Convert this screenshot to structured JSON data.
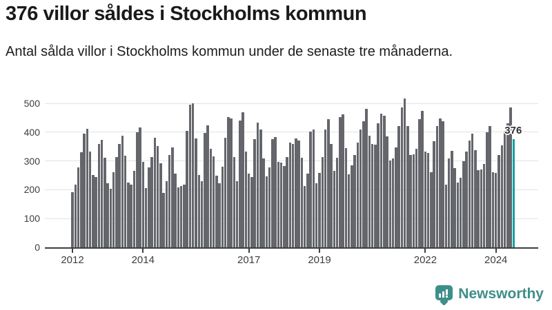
{
  "header": {
    "title": "376 villor såldes i Stockholms kommun",
    "subtitle": "Antal sålda villor i Stockholms kommun under de senaste tre månaderna."
  },
  "chart_data": {
    "type": "bar",
    "title": "376 villor såldes i Stockholms kommun",
    "ylabel": "Antal sålda villor",
    "xlabel": "",
    "grid": true,
    "ylim": [
      0,
      525
    ],
    "yticks": [
      0,
      100,
      200,
      300,
      400,
      500
    ],
    "x_start_month": "2012-01",
    "x_end_month": "2024-07",
    "xticks": [
      {
        "label": "2012",
        "index": 0
      },
      {
        "label": "2014",
        "index": 24
      },
      {
        "label": "2017",
        "index": 60
      },
      {
        "label": "2019",
        "index": 84
      },
      {
        "label": "2022",
        "index": 120
      },
      {
        "label": "2024",
        "index": 144
      }
    ],
    "values": [
      191,
      217,
      278,
      331,
      395,
      411,
      333,
      251,
      243,
      358,
      374,
      310,
      222,
      203,
      261,
      313,
      360,
      388,
      317,
      225,
      217,
      265,
      400,
      416,
      297,
      205,
      277,
      313,
      380,
      352,
      293,
      189,
      229,
      320,
      348,
      257,
      209,
      213,
      217,
      404,
      496,
      501,
      378,
      250,
      230,
      396,
      424,
      342,
      315,
      249,
      222,
      281,
      380,
      452,
      448,
      313,
      230,
      440,
      468,
      333,
      257,
      245,
      376,
      432,
      408,
      309,
      246,
      277,
      376,
      382,
      297,
      295,
      282,
      314,
      364,
      360,
      378,
      372,
      310,
      213,
      257,
      403,
      408,
      222,
      258,
      313,
      408,
      444,
      360,
      265,
      310,
      452,
      462,
      344,
      253,
      285,
      320,
      364,
      410,
      438,
      480,
      388,
      360,
      356,
      430,
      464,
      456,
      384,
      301,
      309,
      348,
      420,
      486,
      516,
      422,
      320,
      323,
      342,
      444,
      474,
      333,
      327,
      261,
      368,
      420,
      448,
      438,
      217,
      309,
      335,
      275,
      225,
      241,
      298,
      333,
      370,
      395,
      337,
      269,
      270,
      289,
      400,
      420,
      261,
      258,
      320,
      354,
      404,
      430,
      485,
      376
    ],
    "highlight": {
      "index": 150,
      "value": 376,
      "annotation": "376"
    },
    "colors": {
      "bar": "#64666c",
      "highlight_bar": "#10a2a3",
      "gridline": "#e3e3e3",
      "axis": "#3f3f3f"
    }
  },
  "footer": {
    "brand": "Newsworthy",
    "brand_color": "#3e8e89"
  }
}
